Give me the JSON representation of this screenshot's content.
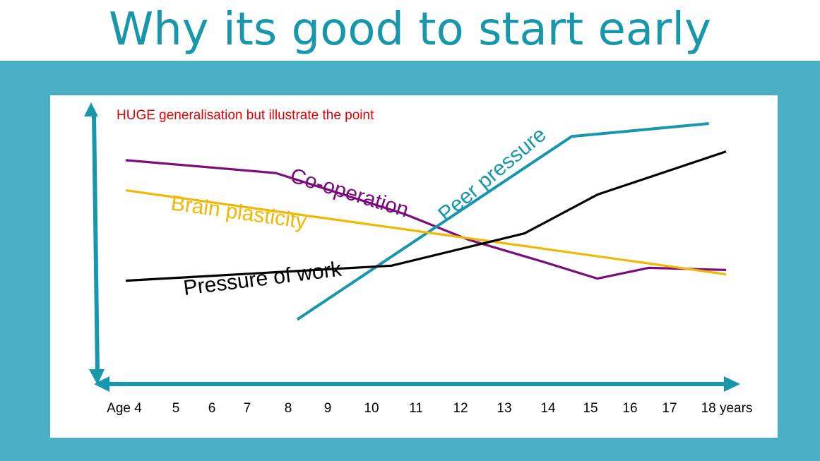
{
  "slide": {
    "title": "Why its good to start early",
    "background_color": "#4aafc4",
    "title_color": "#1797ab"
  },
  "chart_data": {
    "type": "line",
    "title": "",
    "annotation": "HUGE generalisation but illustrate the point",
    "annotation_color": "#e00000",
    "axis_color": "#1797ab",
    "categories": [
      "Age 4",
      "5",
      "6",
      "7",
      "8",
      "9",
      "10",
      "11",
      "12",
      "13",
      "14",
      "15",
      "16",
      "17",
      "18 years"
    ],
    "x_values": [
      4,
      5,
      6,
      7,
      8,
      9,
      10,
      11,
      12,
      13,
      14,
      15,
      16,
      17,
      18
    ],
    "xlim": [
      4,
      18
    ],
    "ylim": [
      0,
      10
    ],
    "grid": false,
    "legend": "inline labels",
    "series": [
      {
        "name": "Co-operation",
        "color": "#7b0c7c",
        "points": [
          [
            4,
            8.3
          ],
          [
            7.5,
            7.7
          ],
          [
            10.5,
            5.8
          ],
          [
            12,
            4.6
          ],
          [
            13.7,
            3.6
          ],
          [
            15,
            2.8
          ],
          [
            16.2,
            3.3
          ],
          [
            18,
            3.2
          ]
        ]
      },
      {
        "name": "Peer pressure",
        "color": "#1797ab",
        "points": [
          [
            8,
            0.9
          ],
          [
            14.4,
            9.4
          ],
          [
            17.6,
            10.0
          ]
        ]
      },
      {
        "name": "Brain plasticity",
        "color": "#f2b705",
        "points": [
          [
            4,
            6.9
          ],
          [
            18,
            3.0
          ]
        ]
      },
      {
        "name": "Pressure of work",
        "color": "#000000",
        "points": [
          [
            4,
            2.7
          ],
          [
            10.2,
            3.4
          ],
          [
            13.3,
            4.9
          ],
          [
            15,
            6.7
          ],
          [
            18,
            8.7
          ]
        ]
      }
    ]
  }
}
